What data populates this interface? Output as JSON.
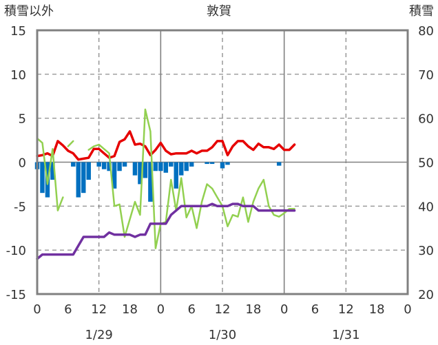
{
  "chart_data": {
    "type": "line",
    "title": "敦賀",
    "left_axis_label": "積雪以外",
    "right_axis_label": "積雪",
    "left_ylim": [
      -15,
      15
    ],
    "left_ticks": [
      "15",
      "10",
      "5",
      "0",
      "-5",
      "-10",
      "-15"
    ],
    "right_ylim": [
      20,
      80
    ],
    "right_ticks": [
      "80",
      "70",
      "60",
      "50",
      "40",
      "30",
      "20"
    ],
    "x_range_hours": [
      0,
      72
    ],
    "x_tick_labels": [
      "0",
      "6",
      "12",
      "18",
      "0",
      "6",
      "12",
      "18",
      "0",
      "6",
      "12",
      "18",
      "0"
    ],
    "date_labels": [
      "1/29",
      "1/30",
      "1/31"
    ],
    "grid": true,
    "colors": {
      "temperature": "#e60000",
      "wind": "#92d050",
      "precip": "#0070c0",
      "snow_depth": "#7030a0",
      "axes": "#808080",
      "grid": "#808080"
    },
    "series": [
      {
        "key": "temperature",
        "axis": "left",
        "x": [
          0,
          1,
          2,
          3,
          4,
          5,
          6,
          7,
          8,
          9,
          10,
          11,
          12,
          13,
          14,
          15,
          16,
          17,
          18,
          19,
          20,
          21,
          22,
          23,
          24,
          25,
          26,
          27,
          28,
          29,
          30,
          31,
          32,
          33,
          34,
          35,
          36,
          37,
          38,
          39,
          40,
          41,
          42,
          43,
          44,
          45,
          46,
          47,
          48,
          49,
          50
        ],
        "values": [
          0.7,
          0.8,
          1.0,
          0.7,
          2.4,
          1.9,
          1.3,
          1.0,
          0.3,
          0.4,
          0.5,
          1.5,
          1.5,
          1.0,
          0.5,
          0.7,
          2.3,
          2.6,
          3.5,
          2.0,
          2.1,
          1.8,
          0.8,
          1.4,
          2.2,
          1.3,
          0.9,
          1.0,
          1.0,
          1.0,
          1.3,
          1.0,
          1.3,
          1.3,
          1.7,
          2.4,
          2.4,
          0.8,
          1.8,
          2.4,
          2.4,
          1.8,
          1.4,
          2.1,
          1.7,
          1.7,
          1.5,
          2.0,
          1.4,
          1.4,
          2.0
        ]
      },
      {
        "key": "wind",
        "axis": "left",
        "segments": [
          {
            "x": [
              0,
              1,
              2,
              3,
              4,
              5
            ],
            "values": [
              2.7,
              2.2,
              -2.5,
              1.5,
              -5.5,
              -4.0
            ]
          },
          {
            "x": [
              6,
              7
            ],
            "values": [
              1.8,
              2.4
            ]
          },
          {
            "x": [
              10,
              11,
              12,
              13,
              14,
              15,
              16,
              17,
              18,
              19,
              20,
              21,
              22,
              23,
              24,
              25,
              26,
              27,
              28,
              29,
              30,
              31,
              32,
              33,
              34,
              35,
              36,
              37,
              38,
              39,
              40,
              41,
              42,
              43,
              44,
              45,
              46,
              47,
              48,
              49,
              50
            ],
            "values": [
              1.4,
              1.8,
              2.0,
              1.5,
              1.0,
              -5.0,
              -4.8,
              -8.5,
              -6.5,
              -4.5,
              -6.0,
              6.0,
              3.5,
              -9.8,
              -7.0,
              -6.8,
              -2.0,
              -5.5,
              -1.8,
              -6.3,
              -5.0,
              -7.5,
              -4.5,
              -2.5,
              -3.0,
              -4.0,
              -5.0,
              -7.3,
              -6.0,
              -6.2,
              -4.0,
              -6.8,
              -4.5,
              -3.0,
              -2.0,
              -5.0,
              -6.0,
              -6.2,
              -5.8,
              -5.3,
              -5.3
            ]
          }
        ]
      },
      {
        "key": "precip",
        "axis": "left",
        "type": "bar",
        "x": [
          0,
          1,
          2,
          3,
          4,
          5,
          6,
          7,
          8,
          9,
          10,
          11,
          12,
          13,
          14,
          15,
          16,
          17,
          18,
          19,
          20,
          21,
          22,
          23,
          24,
          25,
          26,
          27,
          28,
          29,
          30,
          31,
          32,
          33,
          34,
          35,
          36,
          37,
          38,
          39,
          40,
          41,
          42,
          43,
          44,
          45,
          46,
          47,
          48,
          49,
          50
        ],
        "values": [
          -0.8,
          -3.5,
          -4.0,
          -2.0,
          0,
          0,
          0,
          -0.5,
          -4.0,
          -3.5,
          -2.0,
          0,
          -0.5,
          -0.8,
          -1.0,
          -3.0,
          -1.0,
          -0.5,
          0,
          -1.5,
          -2.5,
          -1.8,
          -4.5,
          -1.0,
          -1.0,
          -1.2,
          -0.5,
          -3.0,
          -1.5,
          -1.0,
          -0.5,
          0,
          0,
          -0.2,
          -0.2,
          0,
          -0.7,
          -0.3,
          0,
          0,
          0,
          0,
          0,
          0,
          0,
          0,
          0,
          -0.4,
          0,
          0,
          0
        ]
      },
      {
        "key": "snow_depth",
        "axis": "right",
        "x": [
          0,
          1,
          2,
          3,
          4,
          5,
          6,
          7,
          8,
          9,
          10,
          11,
          12,
          13,
          14,
          15,
          16,
          17,
          18,
          19,
          20,
          21,
          22,
          23,
          24,
          25,
          26,
          27,
          28,
          29,
          30,
          31,
          32,
          33,
          34,
          35,
          36,
          37,
          38,
          39,
          40,
          41,
          42,
          43,
          44,
          45,
          46,
          47,
          48,
          49,
          50
        ],
        "values": [
          28,
          29,
          29,
          29,
          29,
          29,
          29,
          29,
          31,
          33,
          33,
          33,
          33,
          33,
          34,
          33.5,
          33.5,
          33.5,
          33.5,
          33,
          33.5,
          33.5,
          36,
          36,
          36,
          36,
          38,
          39,
          40,
          40,
          40,
          40,
          40,
          40,
          40.5,
          40,
          40,
          40,
          40.5,
          40.5,
          40,
          40,
          40,
          39,
          39,
          39,
          39,
          39,
          39,
          39,
          39
        ]
      }
    ]
  }
}
